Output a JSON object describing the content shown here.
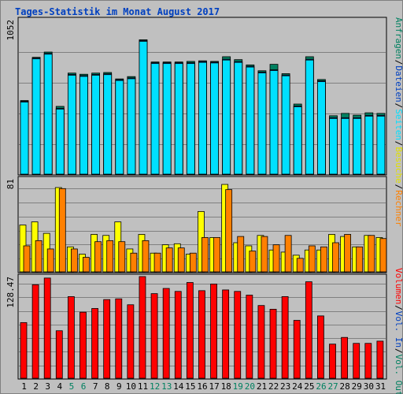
{
  "title": "Tages-Statistik im Monat August 2017",
  "chart_data": [
    {
      "type": "bar",
      "panel": "top",
      "categories": [
        "1",
        "2",
        "3",
        "4",
        "5",
        "6",
        "7",
        "8",
        "9",
        "10",
        "11",
        "12",
        "13",
        "14",
        "15",
        "16",
        "17",
        "18",
        "19",
        "20",
        "21",
        "22",
        "23",
        "24",
        "25",
        "26",
        "27",
        "28",
        "29",
        "30",
        "31"
      ],
      "ytick": "1052",
      "ymax": 1052,
      "series": [
        {
          "name": "Anfragen",
          "color": "#008060",
          "values": [
            630,
            1000,
            1045,
            580,
            865,
            855,
            865,
            870,
            815,
            835,
            1150,
            960,
            960,
            960,
            965,
            970,
            965,
            1005,
            980,
            935,
            885,
            940,
            860,
            600,
            1005,
            810,
            500,
            520,
            505,
            525,
            520
          ]
        },
        {
          "name": "Dateien",
          "color": "#0040c0",
          "values": [
            630,
            1000,
            1040,
            570,
            860,
            850,
            860,
            865,
            815,
            830,
            1150,
            960,
            960,
            960,
            960,
            970,
            965,
            990,
            970,
            930,
            880,
            900,
            855,
            590,
            990,
            805,
            490,
            490,
            490,
            510,
            510
          ]
        },
        {
          "name": "Seiten",
          "color": "#00e0ff",
          "values": [
            630,
            1000,
            1040,
            570,
            860,
            850,
            860,
            865,
            815,
            830,
            1150,
            960,
            960,
            960,
            960,
            970,
            965,
            990,
            970,
            930,
            880,
            900,
            855,
            590,
            990,
            805,
            490,
            490,
            490,
            510,
            510
          ]
        }
      ],
      "right_labels": [
        "Anfragen",
        "/",
        "Dateien",
        "/",
        "Seiten",
        "/",
        "Besuche",
        "/",
        "Rechner"
      ]
    },
    {
      "type": "bar",
      "panel": "middle",
      "ytick": "81",
      "ymax": 81,
      "series": [
        {
          "name": "Besuche",
          "color": "#ffff00",
          "values": [
            45,
            48,
            37,
            81,
            24,
            17,
            36,
            35,
            48,
            22,
            36,
            18,
            26,
            27,
            17,
            58,
            33,
            84,
            28,
            25,
            35,
            21,
            19,
            16,
            21,
            21,
            36,
            34,
            24,
            35,
            33
          ]
        },
        {
          "name": "Rechner",
          "color": "#ff8000",
          "values": [
            25,
            30,
            22,
            80,
            22,
            14,
            29,
            30,
            29,
            18,
            30,
            18,
            23,
            23,
            18,
            33,
            33,
            79,
            34,
            20,
            34,
            26,
            35,
            13,
            25,
            24,
            28,
            36,
            24,
            35,
            32
          ]
        }
      ]
    },
    {
      "type": "bar",
      "panel": "bottom",
      "ytick": "128.47",
      "ymax": 128.47,
      "series": [
        {
          "name": "Volumen",
          "color": "#ff0000",
          "values": [
            75,
            126,
            135,
            64,
            110,
            89,
            94,
            106,
            107,
            99,
            137,
            114,
            121,
            117,
            129,
            118,
            127,
            119,
            117,
            112,
            98,
            93,
            110,
            78,
            130,
            84,
            46,
            55,
            47,
            47,
            50
          ]
        }
      ],
      "right_labels": [
        "Volumen",
        "/",
        "Vol. In",
        "/",
        "Vol. Out"
      ]
    }
  ],
  "colors": {
    "background": "#c0c0c0",
    "grid": "#808080",
    "title": "#0040c0",
    "weekend_label": "#008060"
  },
  "weekend_days": [
    5,
    6,
    12,
    13,
    19,
    20,
    26,
    27
  ]
}
